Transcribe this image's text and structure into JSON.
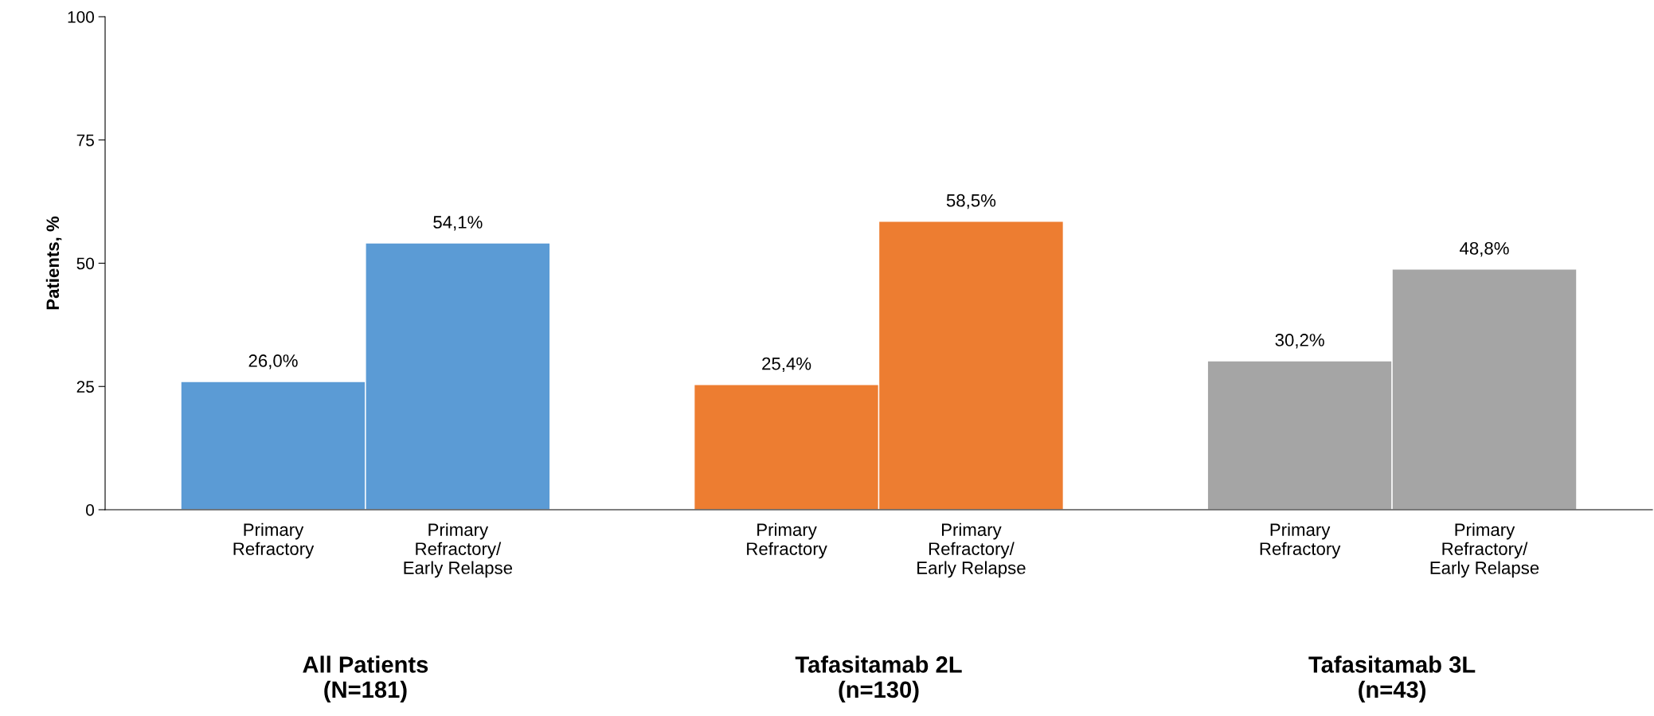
{
  "chart_data": {
    "type": "bar",
    "ylabel": "Patients, %",
    "categories": [
      "Primary\nRefractory",
      "Primary\nRefractory/\nEarly Relapse",
      "Primary\nRefractory",
      "Primary\nRefractory/\nEarly Relapse",
      "Primary\nRefractory",
      "Primary\nRefractory/\nEarly Relapse"
    ],
    "values": [
      26.0,
      54.1,
      25.4,
      58.5,
      30.2,
      48.8
    ],
    "colors": [
      "#5b9bd5",
      "#5b9bd5",
      "#ed7d31",
      "#ed7d31",
      "#a5a5a5",
      "#a5a5a5"
    ],
    "value_labels": [
      "26,0%",
      "54,1%",
      "25,4%",
      "58,5%",
      "30,2%",
      "48,8%"
    ],
    "annotations": [
      "All Patients\n(N=181)",
      "Tafasitamab 2L\n(n=130)",
      "Tafasitamab 3L\n(n=43)"
    ],
    "ylim": [
      0,
      100
    ],
    "yticks": [
      0,
      25,
      50,
      75,
      100
    ],
    "grid": false,
    "legend": false
  }
}
